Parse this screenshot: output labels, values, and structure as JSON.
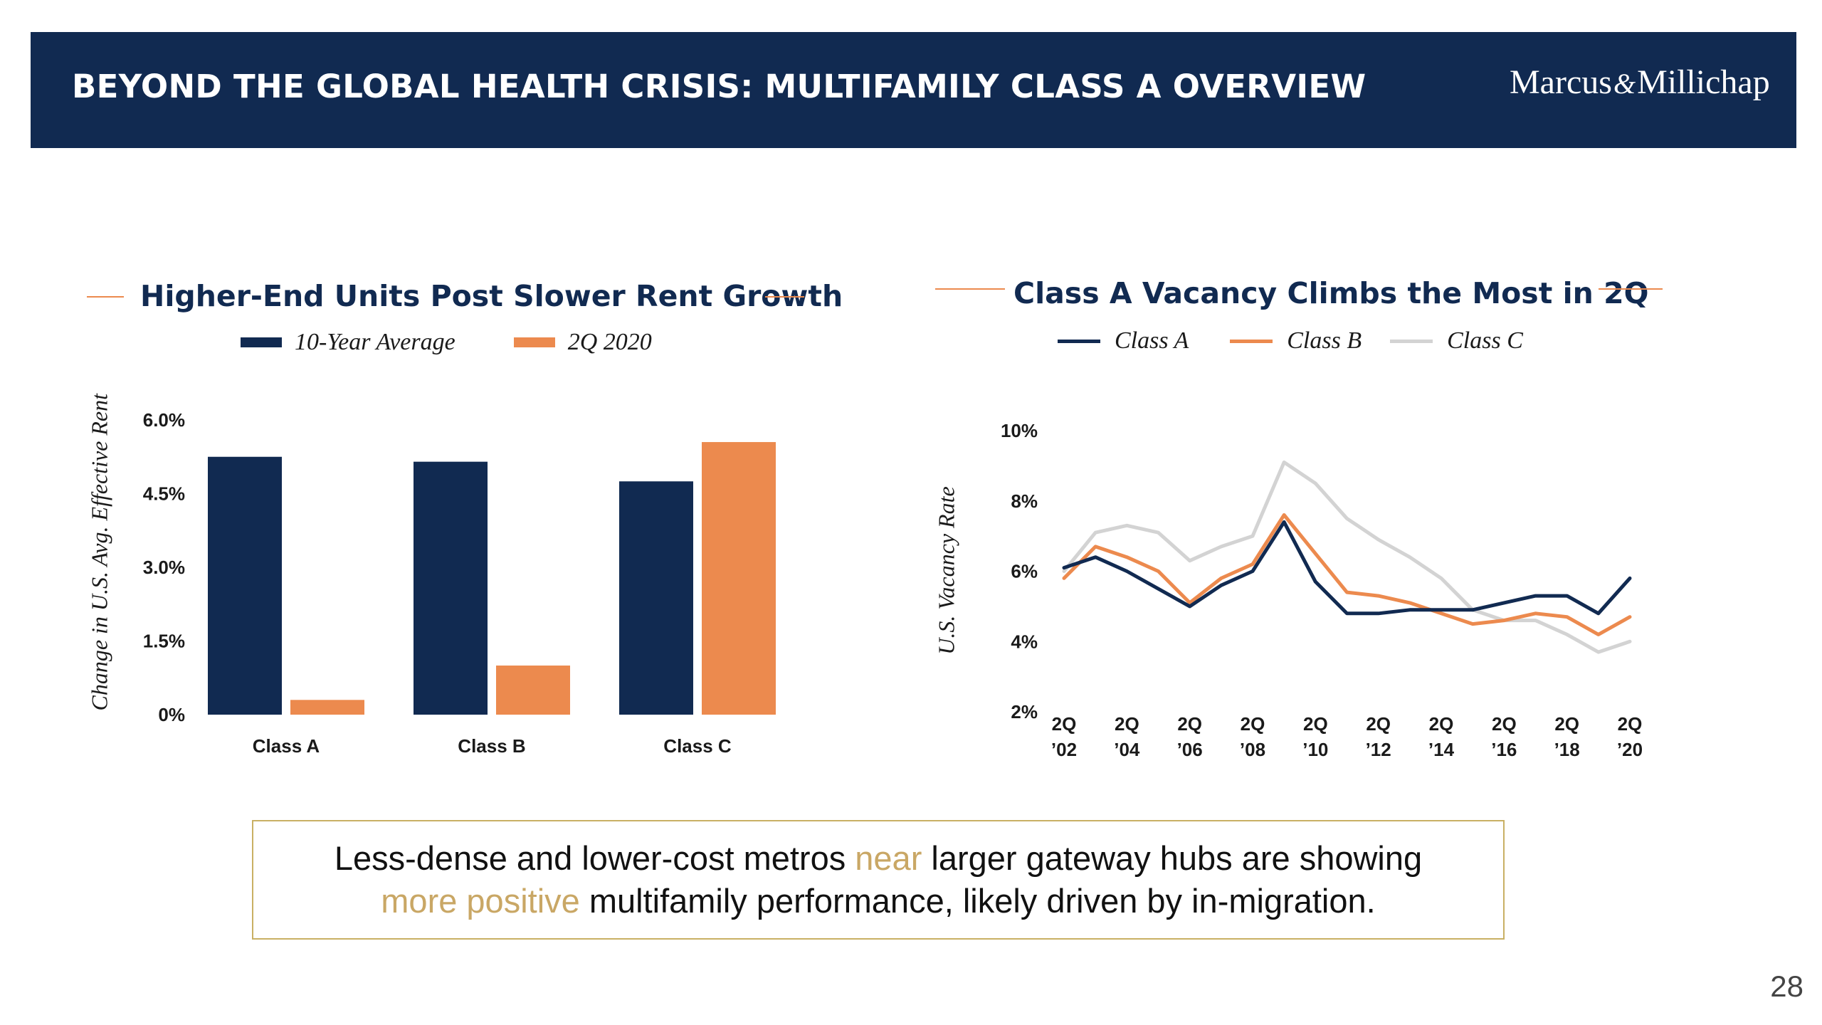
{
  "header": {
    "title": "BEYOND THE GLOBAL HEALTH CRISIS: MULTIFAMILY CLASS A OVERVIEW",
    "logo_left": "Marcus",
    "logo_amp": "&",
    "logo_right": "Millichap",
    "background_color": "#112a51"
  },
  "left_chart": {
    "title": "Higher-End Units Post Slower Rent Growth",
    "legend": [
      "10-Year Average",
      "2Q 2020"
    ],
    "y_axis_title": "Change in U.S. Avg. Effective Rent"
  },
  "right_chart": {
    "title": "Class A Vacancy Climbs the Most in 2Q",
    "legend": [
      "Class A",
      "Class B",
      "Class C"
    ],
    "y_axis_title": "U.S. Vacancy Rate"
  },
  "chart_data": [
    {
      "type": "bar",
      "title": "Higher-End Units Post Slower Rent Growth",
      "xlabel": "",
      "ylabel": "Change in U.S. Avg. Effective Rent",
      "categories": [
        "Class A",
        "Class B",
        "Class C"
      ],
      "series": [
        {
          "name": "10-Year Average",
          "color": "#112a51",
          "values": [
            5.25,
            5.15,
            4.75
          ]
        },
        {
          "name": "2Q 2020",
          "color": "#ec8a4e",
          "values": [
            0.3,
            1.0,
            5.55
          ]
        }
      ],
      "ylim": [
        0,
        6.0
      ],
      "yticks": [
        0,
        1.5,
        3.0,
        4.5,
        6.0
      ],
      "ytick_labels": [
        "0%",
        "1.5%",
        "3.0%",
        "4.5%",
        "6.0%"
      ],
      "grid": false,
      "legend_position": "top"
    },
    {
      "type": "line",
      "title": "Class A Vacancy Climbs the Most in 2Q",
      "xlabel": "",
      "ylabel": "U.S. Vacancy Rate",
      "x": [
        2002,
        2003,
        2004,
        2005,
        2006,
        2007,
        2008,
        2009,
        2010,
        2011,
        2012,
        2013,
        2014,
        2015,
        2016,
        2017,
        2018,
        2019,
        2020
      ],
      "series": [
        {
          "name": "Class A",
          "color": "#112a51",
          "values": [
            6.1,
            6.4,
            6.0,
            5.5,
            5.0,
            5.6,
            6.0,
            7.4,
            5.7,
            4.8,
            4.8,
            4.9,
            4.9,
            4.9,
            5.1,
            5.3,
            5.3,
            4.8,
            5.8
          ]
        },
        {
          "name": "Class B",
          "color": "#ec8a4e",
          "values": [
            5.8,
            6.7,
            6.4,
            6.0,
            5.1,
            5.8,
            6.2,
            7.6,
            6.5,
            5.4,
            5.3,
            5.1,
            4.8,
            4.5,
            4.6,
            4.8,
            4.7,
            4.2,
            4.7
          ]
        },
        {
          "name": "Class C",
          "color": "#d3d3d3",
          "values": [
            6.0,
            7.1,
            7.3,
            7.1,
            6.3,
            6.7,
            7.0,
            9.1,
            8.5,
            7.5,
            6.9,
            6.4,
            5.8,
            4.9,
            4.6,
            4.6,
            4.2,
            3.7,
            4.0
          ]
        }
      ],
      "xticks": [
        2002,
        2004,
        2006,
        2008,
        2010,
        2012,
        2014,
        2016,
        2018,
        2020
      ],
      "xtick_labels": [
        [
          "2Q",
          "’02"
        ],
        [
          "2Q",
          "’04"
        ],
        [
          "2Q",
          "’06"
        ],
        [
          "2Q",
          "’08"
        ],
        [
          "2Q",
          "’10"
        ],
        [
          "2Q",
          "’12"
        ],
        [
          "2Q",
          "’14"
        ],
        [
          "2Q",
          "’16"
        ],
        [
          "2Q",
          "’18"
        ],
        [
          "2Q",
          "’20"
        ]
      ],
      "ylim": [
        2,
        10
      ],
      "yticks": [
        2,
        4,
        6,
        8,
        10
      ],
      "ytick_labels": [
        "2%",
        "4%",
        "6%",
        "8%",
        "10%"
      ],
      "grid": false,
      "legend_position": "top"
    }
  ],
  "callout": {
    "part1": "Less-dense and lower-cost metros ",
    "highlight1": "near",
    "part2": " larger gateway hubs are showing ",
    "highlight2": "more positive",
    "part3": " multifamily performance, likely driven by in-migration.",
    "highlight_color": "#c9a765",
    "border_color": "#c9b064"
  },
  "page_number": "28"
}
